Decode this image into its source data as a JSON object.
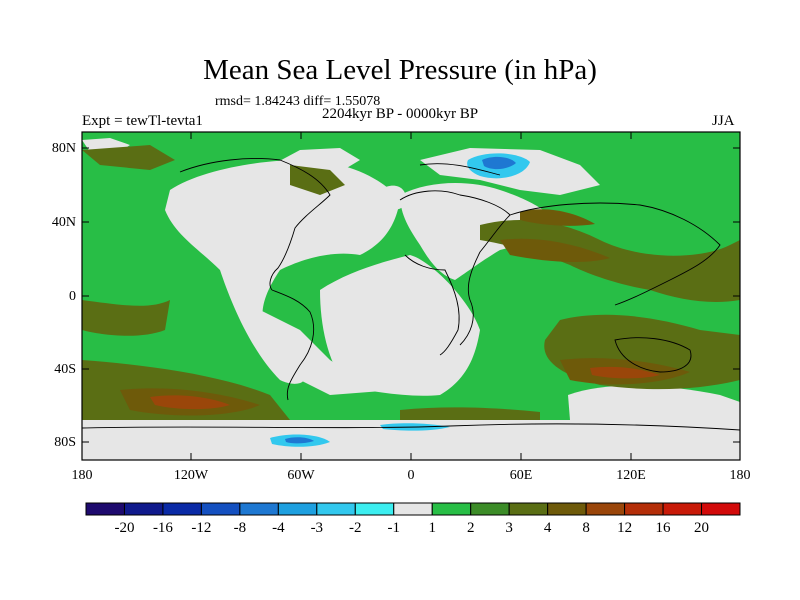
{
  "title": "Mean Sea Level Pressure (in hPa)",
  "stats": "rmsd= 1.84243 diff= 1.55078",
  "period": "2204kyr BP - 0000kyr BP",
  "experiment": "Expt = tewTl-tevta1",
  "season": "JJA",
  "axes": {
    "y_ticks": [
      {
        "label": "80N"
      },
      {
        "label": "40N"
      },
      {
        "label": "0"
      },
      {
        "label": "40S"
      },
      {
        "label": "80S"
      }
    ],
    "x_ticks": [
      {
        "label": "180"
      },
      {
        "label": "120W"
      },
      {
        "label": "60W"
      },
      {
        "label": "0"
      },
      {
        "label": "60E"
      },
      {
        "label": "120E"
      },
      {
        "label": "180"
      }
    ]
  },
  "colorbar": {
    "levels": [
      "-20",
      "-16",
      "-12",
      "-8",
      "-4",
      "-3",
      "-2",
      "-1",
      "1",
      "2",
      "3",
      "4",
      "8",
      "12",
      "16",
      "20"
    ],
    "colors": [
      "#1e0a6e",
      "#101a8c",
      "#0a2aa6",
      "#1450c0",
      "#1e78d2",
      "#1ea0e0",
      "#32c8ee",
      "#3ceef0",
      "#e6e6e6",
      "#28be46",
      "#3c8c28",
      "#5a6e14",
      "#6e5a0a",
      "#9a460a",
      "#b42e08",
      "#c81a08",
      "#d20a0a"
    ]
  },
  "map_colors": {
    "ocean_base": "#28be46",
    "neutral": "#e6e6e6",
    "olive": "#5a6e14",
    "dark_olive": "#3c8c28",
    "brown": "#6e5a0a",
    "rust": "#9a460a",
    "cyan": "#32c8ee",
    "blue": "#1e78d2",
    "coast": "#000000"
  }
}
